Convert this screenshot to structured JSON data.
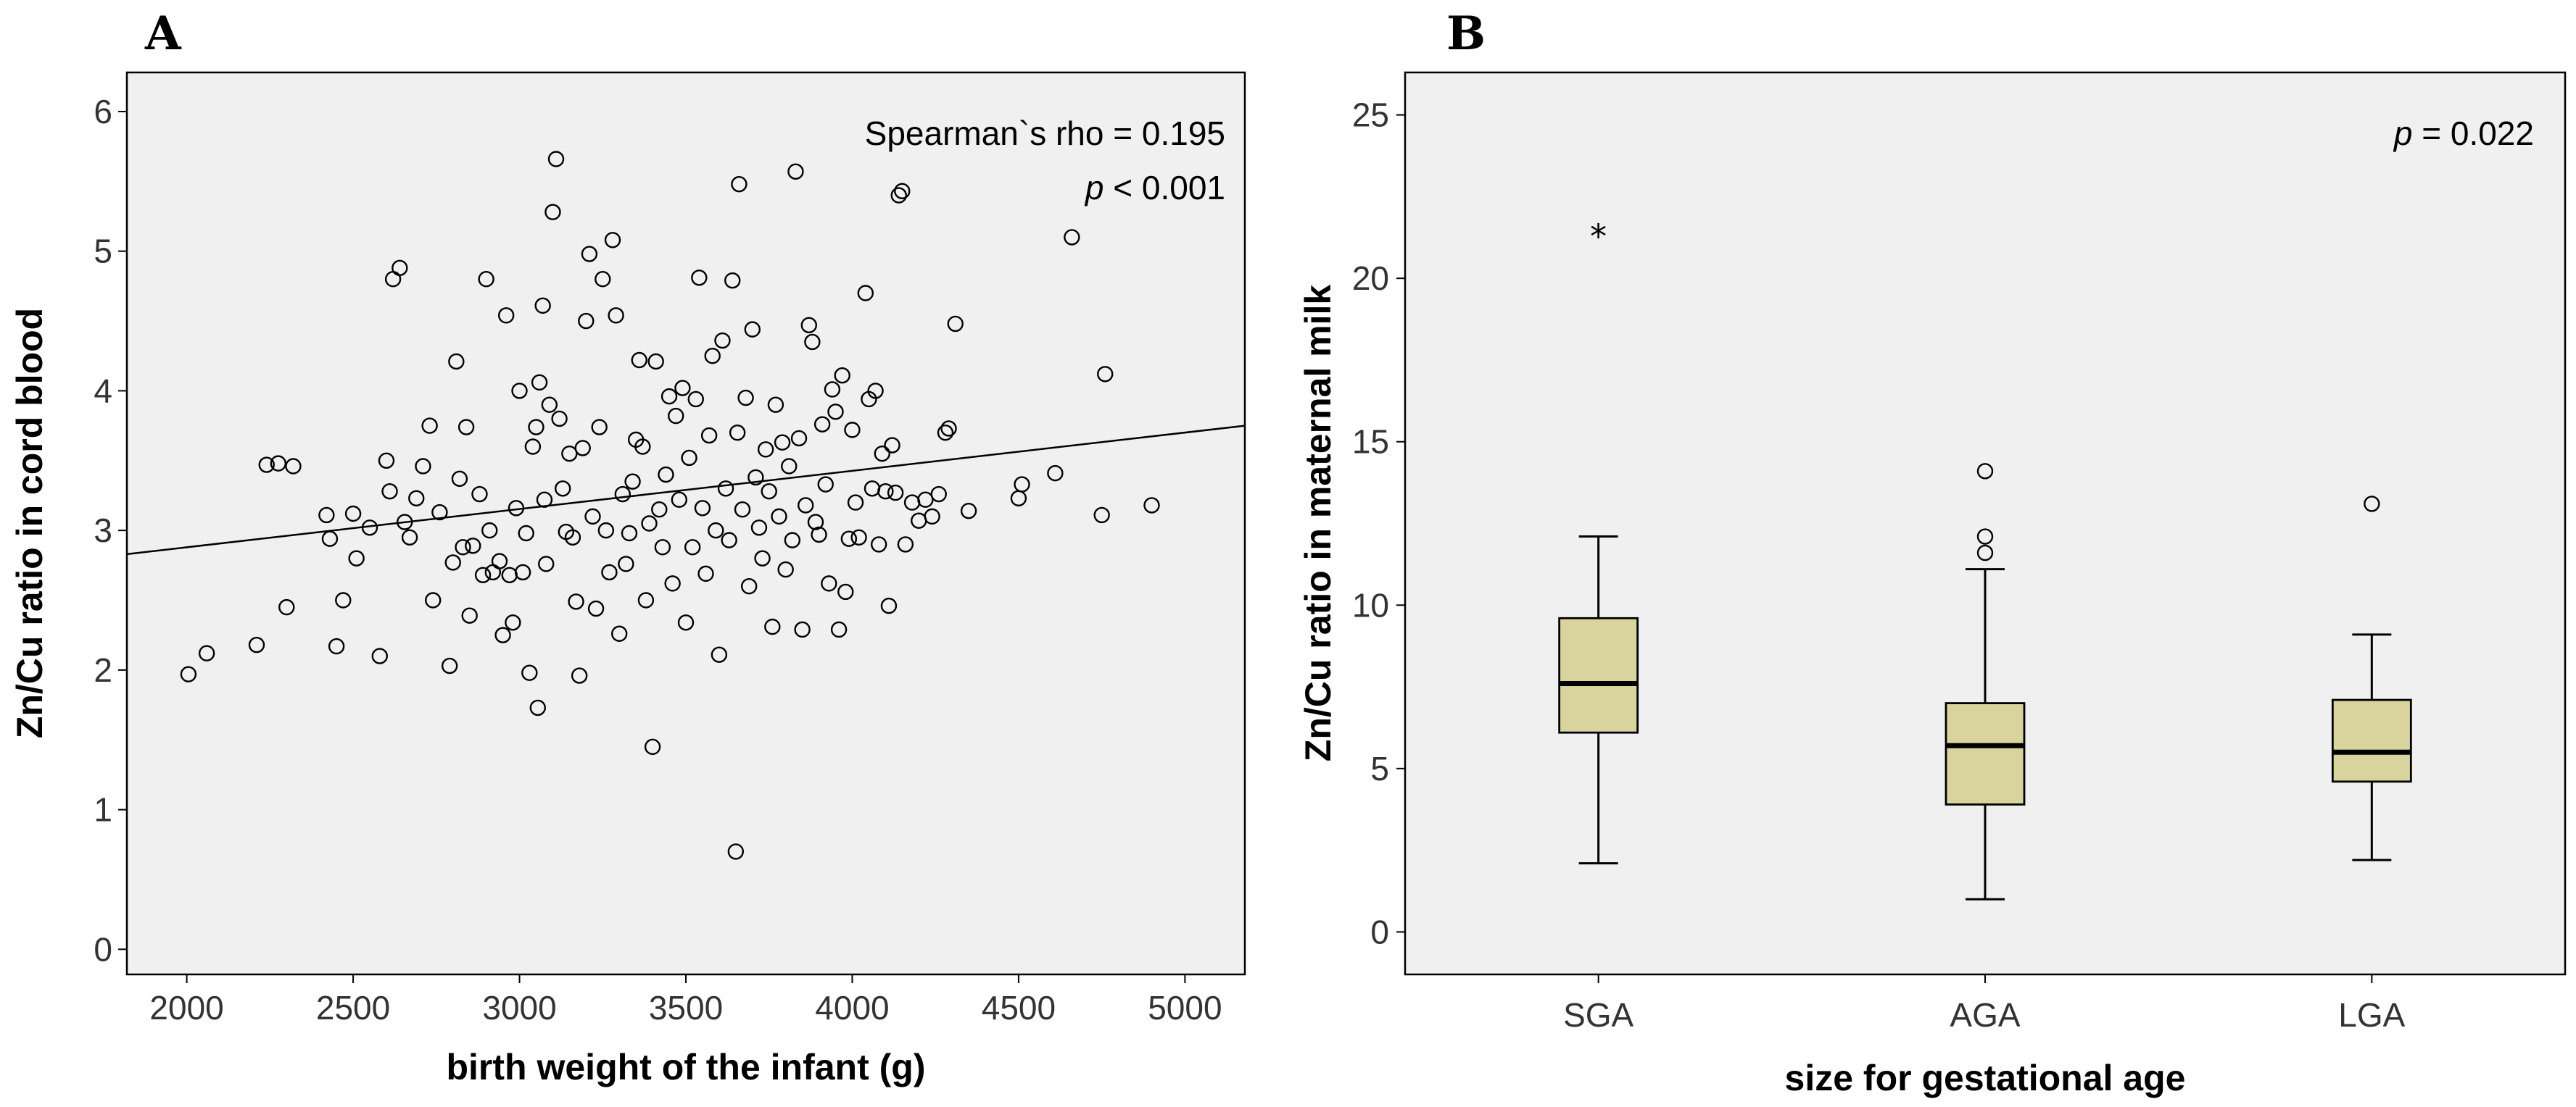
{
  "panels": {
    "a_label": "A",
    "b_label": "B"
  },
  "chart_data": [
    {
      "type": "scatter",
      "panel": "A",
      "xlabel": "birth weight of the infant (g)",
      "ylabel": "Zn/Cu ratio in cord blood",
      "xlim": [
        1820,
        5180
      ],
      "ylim": [
        -0.18,
        6.28
      ],
      "xticks": [
        2000,
        2500,
        3000,
        3500,
        4000,
        4500,
        5000
      ],
      "xtick_labels": [
        "2000",
        "2500",
        "3000",
        "3500",
        "4000",
        "4500",
        "5000"
      ],
      "yticks": [
        0,
        1,
        2,
        3,
        4,
        5,
        6
      ],
      "ytick_labels": [
        "0",
        "1",
        "2",
        "3",
        "4",
        "5",
        "6"
      ],
      "annotation": {
        "rho": "Spearman`s rho = 0.195",
        "p_italic": "p",
        "p_rest": " < 0.001"
      },
      "fit_line": {
        "x": [
          1820,
          5180
        ],
        "y": [
          2.83,
          3.75
        ]
      },
      "points": [
        [
          2005,
          1.97
        ],
        [
          2060,
          2.12
        ],
        [
          2210,
          2.18
        ],
        [
          2240,
          3.47
        ],
        [
          2275,
          3.48
        ],
        [
          2300,
          2.45
        ],
        [
          2320,
          3.46
        ],
        [
          2420,
          3.11
        ],
        [
          2430,
          2.94
        ],
        [
          2450,
          2.17
        ],
        [
          2470,
          2.5
        ],
        [
          2500,
          3.12
        ],
        [
          2510,
          2.8
        ],
        [
          2550,
          3.02
        ],
        [
          2580,
          2.1
        ],
        [
          2600,
          3.5
        ],
        [
          2610,
          3.28
        ],
        [
          2620,
          4.8
        ],
        [
          2640,
          4.88
        ],
        [
          2655,
          3.06
        ],
        [
          2670,
          2.95
        ],
        [
          2690,
          3.23
        ],
        [
          2710,
          3.46
        ],
        [
          2730,
          3.75
        ],
        [
          2740,
          2.5
        ],
        [
          2760,
          3.13
        ],
        [
          2790,
          2.03
        ],
        [
          2800,
          2.77
        ],
        [
          2810,
          4.21
        ],
        [
          2820,
          3.37
        ],
        [
          2830,
          2.88
        ],
        [
          2840,
          3.74
        ],
        [
          2850,
          2.39
        ],
        [
          2860,
          2.89
        ],
        [
          2880,
          3.26
        ],
        [
          2890,
          2.68
        ],
        [
          2900,
          4.8
        ],
        [
          2910,
          3.0
        ],
        [
          2920,
          2.7
        ],
        [
          2940,
          2.78
        ],
        [
          2950,
          2.25
        ],
        [
          2960,
          4.54
        ],
        [
          2970,
          2.68
        ],
        [
          2980,
          2.34
        ],
        [
          2990,
          3.16
        ],
        [
          3000,
          4.0
        ],
        [
          3010,
          2.7
        ],
        [
          3020,
          2.98
        ],
        [
          3030,
          1.98
        ],
        [
          3040,
          3.6
        ],
        [
          3050,
          3.74
        ],
        [
          3055,
          1.73
        ],
        [
          3060,
          4.06
        ],
        [
          3070,
          4.61
        ],
        [
          3075,
          3.22
        ],
        [
          3080,
          2.76
        ],
        [
          3090,
          3.9
        ],
        [
          3100,
          5.28
        ],
        [
          3110,
          5.66
        ],
        [
          3120,
          3.8
        ],
        [
          3130,
          3.3
        ],
        [
          3140,
          2.99
        ],
        [
          3150,
          3.55
        ],
        [
          3160,
          2.95
        ],
        [
          3170,
          2.49
        ],
        [
          3180,
          1.96
        ],
        [
          3190,
          3.59
        ],
        [
          3200,
          4.5
        ],
        [
          3210,
          4.98
        ],
        [
          3220,
          3.1
        ],
        [
          3230,
          2.44
        ],
        [
          3240,
          3.74
        ],
        [
          3250,
          4.8
        ],
        [
          3260,
          3.0
        ],
        [
          3270,
          2.7
        ],
        [
          3280,
          5.08
        ],
        [
          3290,
          4.54
        ],
        [
          3300,
          2.26
        ],
        [
          3310,
          3.26
        ],
        [
          3320,
          2.76
        ],
        [
          3330,
          2.98
        ],
        [
          3340,
          3.35
        ],
        [
          3350,
          3.65
        ],
        [
          3360,
          4.22
        ],
        [
          3370,
          3.6
        ],
        [
          3380,
          2.5
        ],
        [
          3390,
          3.05
        ],
        [
          3400,
          1.45
        ],
        [
          3410,
          4.21
        ],
        [
          3420,
          3.15
        ],
        [
          3430,
          2.88
        ],
        [
          3440,
          3.4
        ],
        [
          3450,
          3.96
        ],
        [
          3460,
          2.62
        ],
        [
          3470,
          3.82
        ],
        [
          3480,
          3.22
        ],
        [
          3490,
          4.02
        ],
        [
          3500,
          2.34
        ],
        [
          3510,
          3.52
        ],
        [
          3520,
          2.88
        ],
        [
          3530,
          3.94
        ],
        [
          3540,
          4.81
        ],
        [
          3550,
          3.16
        ],
        [
          3560,
          2.69
        ],
        [
          3570,
          3.68
        ],
        [
          3580,
          4.25
        ],
        [
          3590,
          3.0
        ],
        [
          3600,
          2.11
        ],
        [
          3610,
          4.36
        ],
        [
          3620,
          3.3
        ],
        [
          3630,
          2.93
        ],
        [
          3640,
          4.79
        ],
        [
          3650,
          0.7
        ],
        [
          3655,
          3.7
        ],
        [
          3660,
          5.48
        ],
        [
          3670,
          3.15
        ],
        [
          3680,
          3.95
        ],
        [
          3690,
          2.6
        ],
        [
          3700,
          4.44
        ],
        [
          3710,
          3.38
        ],
        [
          3720,
          3.02
        ],
        [
          3730,
          2.8
        ],
        [
          3740,
          3.58
        ],
        [
          3750,
          3.28
        ],
        [
          3760,
          2.31
        ],
        [
          3770,
          3.9
        ],
        [
          3780,
          3.1
        ],
        [
          3790,
          3.63
        ],
        [
          3800,
          2.72
        ],
        [
          3810,
          3.46
        ],
        [
          3820,
          2.93
        ],
        [
          3830,
          5.57
        ],
        [
          3840,
          3.66
        ],
        [
          3850,
          2.29
        ],
        [
          3860,
          3.18
        ],
        [
          3870,
          4.47
        ],
        [
          3880,
          4.35
        ],
        [
          3890,
          3.06
        ],
        [
          3900,
          2.97
        ],
        [
          3910,
          3.76
        ],
        [
          3920,
          3.33
        ],
        [
          3930,
          2.62
        ],
        [
          3940,
          4.01
        ],
        [
          3950,
          3.85
        ],
        [
          3960,
          2.29
        ],
        [
          3970,
          4.11
        ],
        [
          3980,
          2.56
        ],
        [
          3990,
          2.94
        ],
        [
          4000,
          3.72
        ],
        [
          4010,
          3.2
        ],
        [
          4020,
          2.95
        ],
        [
          4040,
          4.7
        ],
        [
          4050,
          3.94
        ],
        [
          4060,
          3.3
        ],
        [
          4070,
          4.0
        ],
        [
          4080,
          2.9
        ],
        [
          4090,
          3.55
        ],
        [
          4100,
          3.28
        ],
        [
          4110,
          2.46
        ],
        [
          4120,
          3.61
        ],
        [
          4130,
          3.27
        ],
        [
          4140,
          5.4
        ],
        [
          4150,
          5.43
        ],
        [
          4160,
          2.9
        ],
        [
          4180,
          3.2
        ],
        [
          4200,
          3.07
        ],
        [
          4220,
          3.22
        ],
        [
          4240,
          3.1
        ],
        [
          4260,
          3.26
        ],
        [
          4280,
          3.7
        ],
        [
          4290,
          3.73
        ],
        [
          4310,
          4.48
        ],
        [
          4350,
          3.14
        ],
        [
          4500,
          3.23
        ],
        [
          4510,
          3.33
        ],
        [
          4610,
          3.41
        ],
        [
          4660,
          5.1
        ],
        [
          4750,
          3.11
        ],
        [
          4760,
          4.12
        ],
        [
          4900,
          3.18
        ]
      ]
    },
    {
      "type": "box",
      "panel": "B",
      "xlabel": "size for gestational age",
      "ylabel": "Zn/Cu ratio in maternal milk",
      "ylim": [
        -1.3,
        26.3
      ],
      "yticks": [
        0,
        5,
        10,
        15,
        20,
        25
      ],
      "ytick_labels": [
        "0",
        "5",
        "10",
        "15",
        "20",
        "25"
      ],
      "categories": [
        "SGA",
        "AGA",
        "LGA"
      ],
      "annotation": {
        "p_italic": "p",
        "p_rest": " = 0.022"
      },
      "boxes": [
        {
          "category": "SGA",
          "whisker_low": 2.1,
          "q1": 6.1,
          "median": 7.6,
          "q3": 9.6,
          "whisker_high": 12.1,
          "outliers": [],
          "extremes": [
            21.5
          ]
        },
        {
          "category": "AGA",
          "whisker_low": 1.0,
          "q1": 3.9,
          "median": 5.7,
          "q3": 7.0,
          "whisker_high": 11.1,
          "outliers": [
            11.6,
            12.1,
            14.1
          ],
          "extremes": []
        },
        {
          "category": "LGA",
          "whisker_low": 2.2,
          "q1": 4.6,
          "median": 5.5,
          "q3": 7.1,
          "whisker_high": 9.1,
          "outliers": [
            13.1
          ],
          "extremes": []
        }
      ]
    }
  ]
}
